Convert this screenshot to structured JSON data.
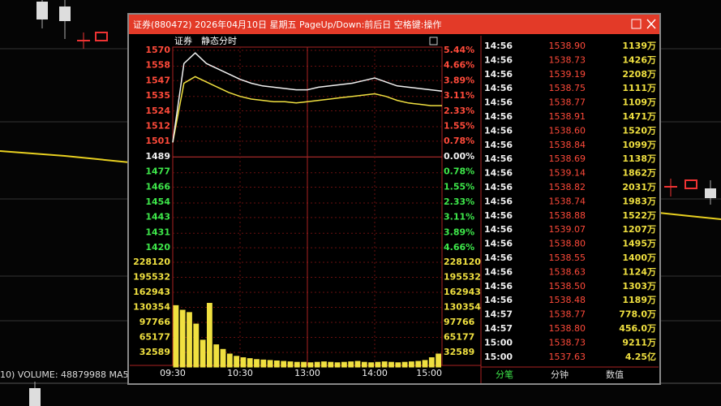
{
  "background": {
    "status": "10) VOLUME: 48879988 MA5:"
  },
  "window": {
    "title": "证券(880472) 2026年04月10日 星期五 PageUp/Down:前后日 空格键:操作"
  },
  "chart": {
    "name": "证券",
    "mode": "静态分时",
    "price_labels": [
      1570,
      1558,
      1547,
      1535,
      1524,
      1512,
      1501,
      1489,
      1477,
      1466,
      1454,
      1443,
      1431,
      1420
    ],
    "percent_labels": [
      "5.44%",
      "4.66%",
      "3.89%",
      "3.11%",
      "2.33%",
      "1.55%",
      "0.78%",
      "0.00%",
      "0.78%",
      "1.55%",
      "2.33%",
      "3.11%",
      "3.89%",
      "4.66%"
    ],
    "volume_labels": [
      228120,
      195532,
      162943,
      130354,
      97766,
      65177,
      32589
    ],
    "time_labels": [
      "09:30",
      "10:30",
      "13:00",
      "14:00",
      "15:00"
    ],
    "price": [
      1500,
      1560,
      1568,
      1560,
      1556,
      1552,
      1548,
      1545,
      1543,
      1542,
      1541,
      1540,
      1540,
      1542,
      1543,
      1544,
      1545,
      1547,
      1549,
      1546,
      1543,
      1542,
      1541,
      1540,
      1539
    ],
    "average": [
      1500,
      1545,
      1550,
      1546,
      1542,
      1538,
      1535,
      1533,
      1532,
      1531,
      1531,
      1530,
      1531,
      1532,
      1533,
      1534,
      1535,
      1536,
      1537,
      1535,
      1532,
      1530,
      1529,
      1528,
      1528
    ],
    "volume": [
      135000,
      125000,
      120000,
      95000,
      60000,
      140000,
      50000,
      40000,
      30000,
      25000,
      22000,
      20000,
      18000,
      17000,
      16000,
      15000,
      14000,
      13000,
      12000,
      12000,
      11000,
      12000,
      13000,
      12000,
      11000,
      12000,
      13000,
      14000,
      12000,
      11000,
      12000,
      13000,
      12000,
      11000,
      12000,
      13000,
      14000,
      16000,
      22000,
      30000
    ]
  },
  "ticks": {
    "rows": [
      [
        "14:56",
        "1538.90",
        "1139万"
      ],
      [
        "14:56",
        "1538.73",
        "1426万"
      ],
      [
        "14:56",
        "1539.19",
        "2208万"
      ],
      [
        "14:56",
        "1538.75",
        "1111万"
      ],
      [
        "14:56",
        "1538.77",
        "1109万"
      ],
      [
        "14:56",
        "1538.91",
        "1471万"
      ],
      [
        "14:56",
        "1538.60",
        "1520万"
      ],
      [
        "14:56",
        "1538.84",
        "1099万"
      ],
      [
        "14:56",
        "1538.69",
        "1138万"
      ],
      [
        "14:56",
        "1539.14",
        "1862万"
      ],
      [
        "14:56",
        "1538.82",
        "2031万"
      ],
      [
        "14:56",
        "1538.74",
        "1983万"
      ],
      [
        "14:56",
        "1538.88",
        "1522万"
      ],
      [
        "14:56",
        "1539.07",
        "1207万"
      ],
      [
        "14:56",
        "1538.80",
        "1495万"
      ],
      [
        "14:56",
        "1538.55",
        "1400万"
      ],
      [
        "14:56",
        "1538.63",
        "1124万"
      ],
      [
        "14:56",
        "1538.50",
        "1303万"
      ],
      [
        "14:56",
        "1538.48",
        "1189万"
      ],
      [
        "14:57",
        "1538.77",
        "778.0万"
      ],
      [
        "14:57",
        "1538.80",
        "456.0万"
      ],
      [
        "15:00",
        "1538.73",
        "9211万"
      ],
      [
        "15:00",
        "1537.63",
        "4.25亿"
      ]
    ]
  },
  "tabs": [
    "分笔",
    "分钟",
    "数值"
  ]
}
